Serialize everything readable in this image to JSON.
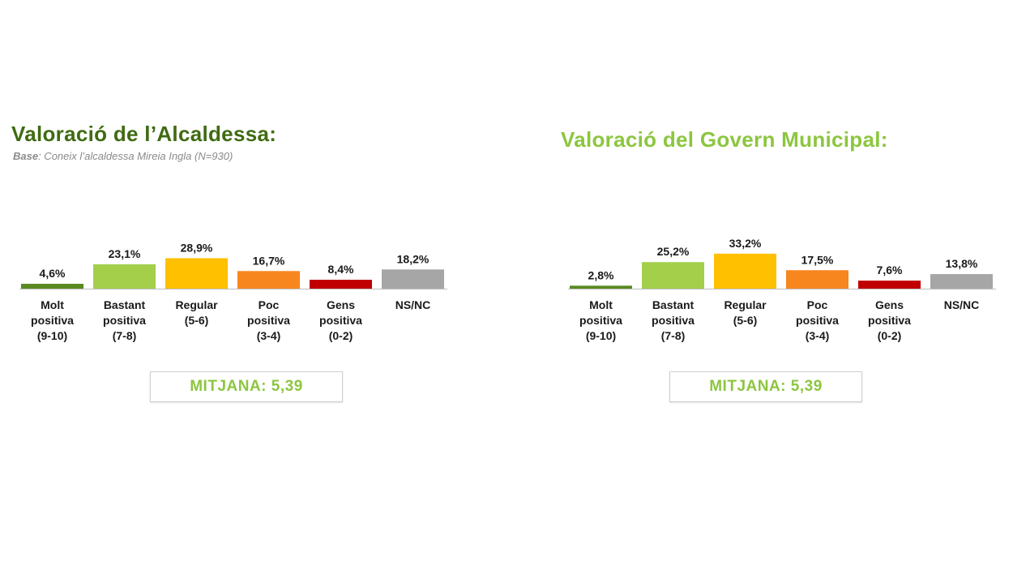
{
  "colors": {
    "molt": "#5a8a20",
    "bastant": "#a3cf4a",
    "regular": "#ffc000",
    "poc": "#f7861e",
    "gens": "#c00000",
    "nsnc": "#a6a6a6"
  },
  "chart_data": [
    {
      "type": "bar",
      "title": "Valoració de l’Alcaldessa:",
      "subtitle_base": "Base",
      "subtitle_rest": ": Coneix l’alcaldessa Mireia Ingla (N=930)",
      "categories": [
        [
          "Molt",
          "positiva",
          "(9-10)"
        ],
        [
          "Bastant",
          "positiva",
          "(7-8)"
        ],
        [
          "Regular",
          "(5-6)"
        ],
        [
          "Poc",
          "positiva",
          "(3-4)"
        ],
        [
          "Gens",
          "positiva",
          "(0-2)"
        ],
        [
          "NS/NC"
        ]
      ],
      "values": [
        4.6,
        23.1,
        28.9,
        16.7,
        8.4,
        18.2
      ],
      "value_labels": [
        "4,6%",
        "23,1%",
        "28,9%",
        "16,7%",
        "8,4%",
        "18,2%"
      ],
      "colors": [
        "#5a8a20",
        "#a3cf4a",
        "#ffc000",
        "#f7861e",
        "#c00000",
        "#a6a6a6"
      ],
      "mitjana": "MITJANA: 5,39"
    },
    {
      "type": "bar",
      "title": "Valoració del Govern Municipal:",
      "categories": [
        [
          "Molt",
          "positiva",
          "(9-10)"
        ],
        [
          "Bastant",
          "positiva",
          "(7-8)"
        ],
        [
          "Regular",
          "(5-6)"
        ],
        [
          "Poc",
          "positiva",
          "(3-4)"
        ],
        [
          "Gens",
          "positiva",
          "(0-2)"
        ],
        [
          "NS/NC"
        ]
      ],
      "values": [
        2.8,
        25.2,
        33.2,
        17.5,
        7.6,
        13.8
      ],
      "value_labels": [
        "2,8%",
        "25,2%",
        "33,2%",
        "17,5%",
        "7,6%",
        "13,8%"
      ],
      "colors": [
        "#5a8a20",
        "#a3cf4a",
        "#ffc000",
        "#f7861e",
        "#c00000",
        "#a6a6a6"
      ],
      "mitjana": "MITJANA: 5,39"
    }
  ]
}
